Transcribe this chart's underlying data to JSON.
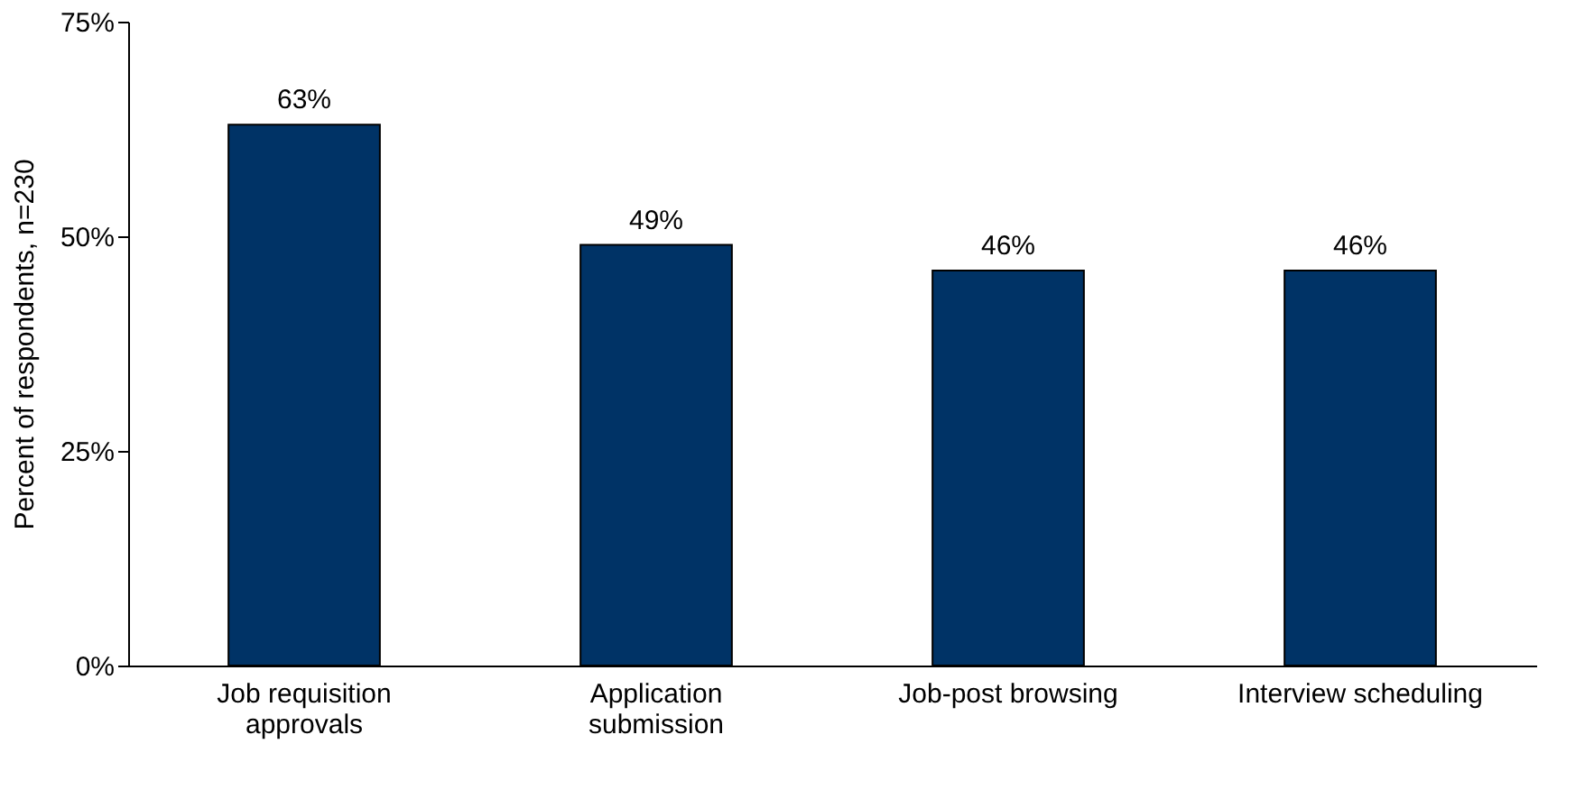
{
  "chart_data": {
    "type": "bar",
    "ylabel": "Percent of respondents, n=230",
    "categories": [
      "Job requisition\napprovals",
      "Application\nsubmission",
      "Job-post browsing",
      "Interview scheduling"
    ],
    "values": [
      63,
      49,
      46,
      46
    ],
    "value_labels": [
      "63%",
      "49%",
      "46%",
      "46%"
    ],
    "color": "#003366",
    "ylim": [
      0,
      75
    ],
    "yticks": [
      {
        "value": 0,
        "label": "0%"
      },
      {
        "value": 25,
        "label": "25%"
      },
      {
        "value": 50,
        "label": "50%"
      },
      {
        "value": 75,
        "label": "75%"
      }
    ],
    "grid": false
  }
}
